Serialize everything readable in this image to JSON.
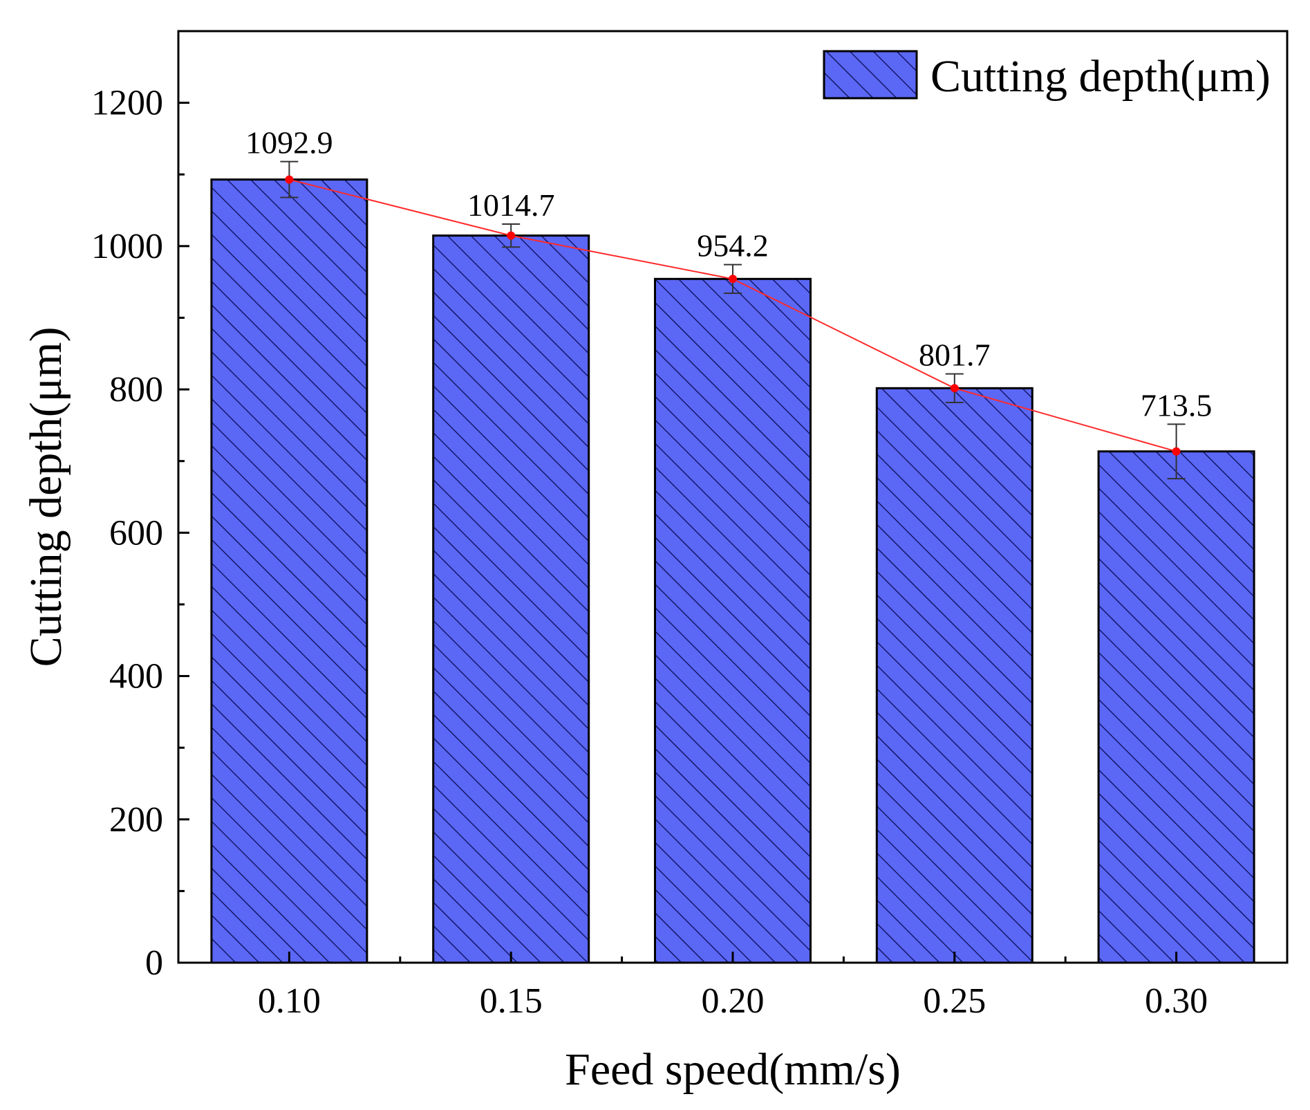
{
  "chart_data": {
    "type": "bar",
    "title": "",
    "xlabel": "Feed speed(mm/s)",
    "ylabel": "Cutting depth(μm)",
    "categories": [
      "0.10",
      "0.15",
      "0.20",
      "0.25",
      "0.30"
    ],
    "series": [
      {
        "name": "Cutting depth(μm)",
        "values": [
          1092.9,
          1014.7,
          954.2,
          801.7,
          713.5
        ],
        "errors": [
          25,
          16,
          20,
          20,
          38
        ],
        "labels": [
          "1092.9",
          "1014.7",
          "954.2",
          "801.7",
          "713.5"
        ]
      }
    ],
    "trend_line": true,
    "ylim": [
      0,
      1300
    ],
    "yticks": [
      0,
      200,
      400,
      600,
      800,
      1000,
      1200
    ],
    "yticks_minor": [
      100,
      300,
      500,
      700,
      900,
      1100
    ],
    "ytick_labels": [
      "0",
      "200",
      "400",
      "600",
      "800",
      "1000",
      "1200"
    ],
    "legend_position": "top-right",
    "grid": false,
    "colors": {
      "bar_fill": "#5b67f5",
      "hatch": "#14186a",
      "trend_line": "#ff2a2a",
      "marker": "#ff0000",
      "error_bar": "#333333",
      "axis": "#000000"
    }
  }
}
